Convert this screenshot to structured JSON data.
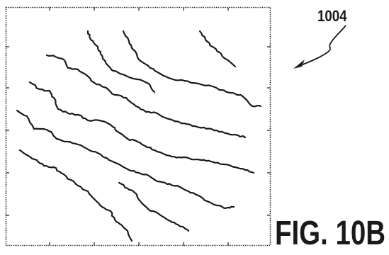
{
  "figure": {
    "reference_numeral": "1004",
    "caption": "FIG. 10B",
    "line_color": "#1a1a1a",
    "streak_count": 10
  }
}
